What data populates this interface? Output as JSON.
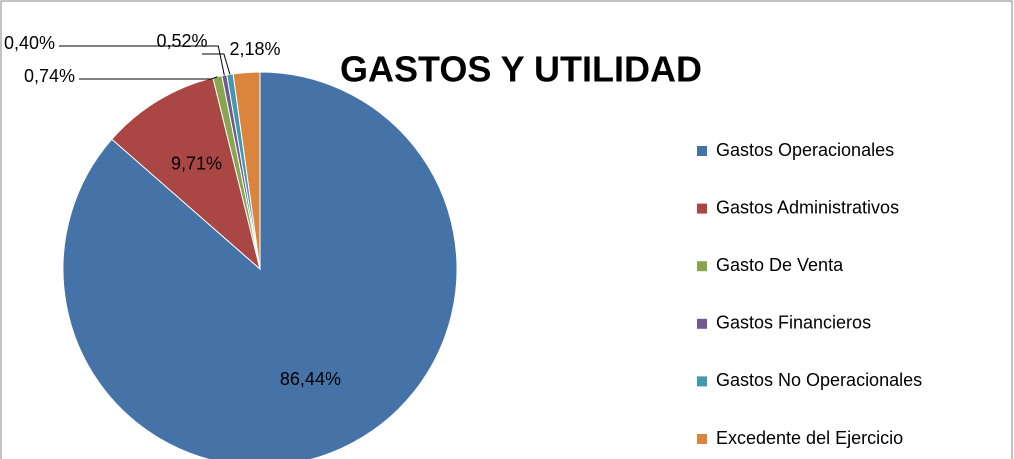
{
  "chart_data": {
    "type": "pie",
    "title": "GASTOS Y UTILIDAD",
    "categories": [
      "Gastos Operacionales",
      "Gastos Administrativos",
      "Gasto De Venta",
      "Gastos Financieros",
      "Gastos No Operacionales",
      "Excedente del Ejercicio"
    ],
    "values": [
      86.44,
      9.71,
      0.74,
      0.4,
      0.52,
      2.18
    ],
    "value_labels": [
      "86,44%",
      "9,71%",
      "0,74%",
      "0,40%",
      "0,52%",
      "2,18%"
    ],
    "colors": [
      "#4572a7",
      "#aa4643",
      "#89a54e",
      "#71588f",
      "#4198af",
      "#db843d"
    ],
    "legend": "right"
  }
}
